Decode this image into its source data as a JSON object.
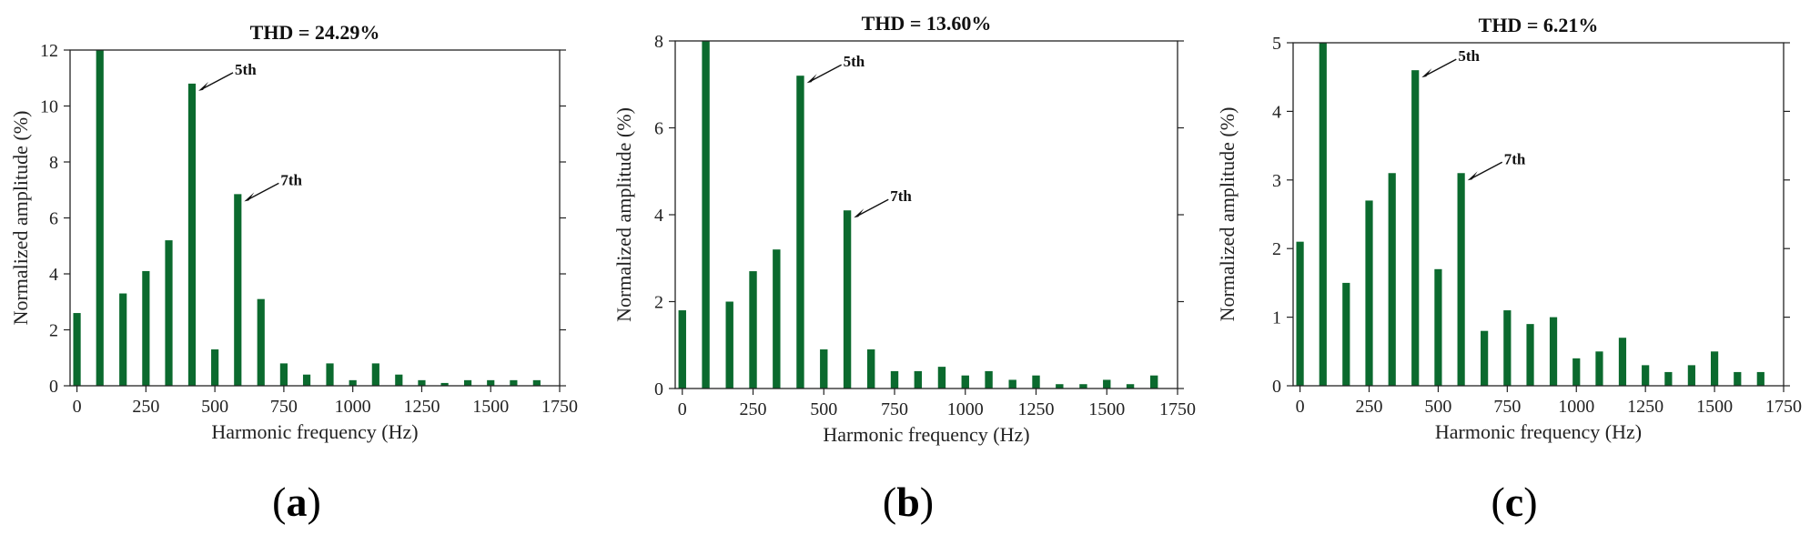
{
  "chart_data": [
    {
      "type": "bar",
      "title": "THD = 24.29%",
      "xlabel": "Harmonic frequency (Hz)",
      "ylabel": "Normalized amplitude (%)",
      "xlim": [
        -25,
        1750
      ],
      "ylim": [
        0,
        12
      ],
      "xticks": [
        0,
        250,
        500,
        750,
        1000,
        1250,
        1500,
        1750
      ],
      "yticks": [
        0,
        2,
        4,
        6,
        8,
        10,
        12
      ],
      "bar_color": "#0b6a2e",
      "grid": false,
      "x": [
        0,
        83,
        167,
        250,
        333,
        417,
        500,
        583,
        667,
        750,
        833,
        917,
        1000,
        1083,
        1167,
        1250,
        1333,
        1417,
        1500,
        1583,
        1667
      ],
      "values": [
        2.6,
        12,
        3.3,
        4.1,
        5.2,
        10.8,
        1.3,
        6.85,
        3.1,
        0.8,
        0.4,
        0.8,
        0.2,
        0.8,
        0.4,
        0.2,
        0.1,
        0.2,
        0.2,
        0.2,
        0.2
      ],
      "annotations": [
        {
          "text": "5th",
          "x": 417,
          "y": 10.8
        },
        {
          "text": "7th",
          "x": 583,
          "y": 6.85
        }
      ],
      "caption": "a"
    },
    {
      "type": "bar",
      "title": "THD = 13.60%",
      "xlabel": "Harmonic frequency (Hz)",
      "ylabel": "Normalized amplitude (%)",
      "xlim": [
        -25,
        1750
      ],
      "ylim": [
        0,
        8
      ],
      "xticks": [
        0,
        250,
        500,
        750,
        1000,
        1250,
        1500,
        1750
      ],
      "yticks": [
        0,
        2,
        4,
        6,
        8
      ],
      "bar_color": "#0b6a2e",
      "grid": false,
      "x": [
        0,
        83,
        167,
        250,
        333,
        417,
        500,
        583,
        667,
        750,
        833,
        917,
        1000,
        1083,
        1167,
        1250,
        1333,
        1417,
        1500,
        1583,
        1667
      ],
      "values": [
        1.8,
        8,
        2.0,
        2.7,
        3.2,
        7.2,
        0.9,
        4.1,
        0.9,
        0.4,
        0.4,
        0.5,
        0.3,
        0.4,
        0.2,
        0.3,
        0.1,
        0.1,
        0.2,
        0.1,
        0.3
      ],
      "annotations": [
        {
          "text": "5th",
          "x": 417,
          "y": 7.2
        },
        {
          "text": "7th",
          "x": 583,
          "y": 4.1
        }
      ],
      "caption": "b"
    },
    {
      "type": "bar",
      "title": "THD = 6.21%",
      "xlabel": "Harmonic frequency (Hz)",
      "ylabel": "Normalized amplitude (%)",
      "xlim": [
        -25,
        1750
      ],
      "ylim": [
        0,
        5
      ],
      "xticks": [
        0,
        250,
        500,
        750,
        1000,
        1250,
        1500,
        1750
      ],
      "yticks": [
        0,
        1,
        2,
        3,
        4,
        5
      ],
      "bar_color": "#0b6a2e",
      "grid": false,
      "x": [
        0,
        83,
        167,
        250,
        333,
        417,
        500,
        583,
        667,
        750,
        833,
        917,
        1000,
        1083,
        1167,
        1250,
        1333,
        1417,
        1500,
        1583,
        1667
      ],
      "values": [
        2.1,
        5,
        1.5,
        2.7,
        3.1,
        4.6,
        1.7,
        3.1,
        0.8,
        1.1,
        0.9,
        1.0,
        0.4,
        0.5,
        0.7,
        0.3,
        0.2,
        0.3,
        0.5,
        0.2,
        0.2
      ],
      "annotations": [
        {
          "text": "5th",
          "x": 417,
          "y": 4.6
        },
        {
          "text": "7th",
          "x": 583,
          "y": 3.1
        }
      ],
      "caption": "c"
    }
  ]
}
